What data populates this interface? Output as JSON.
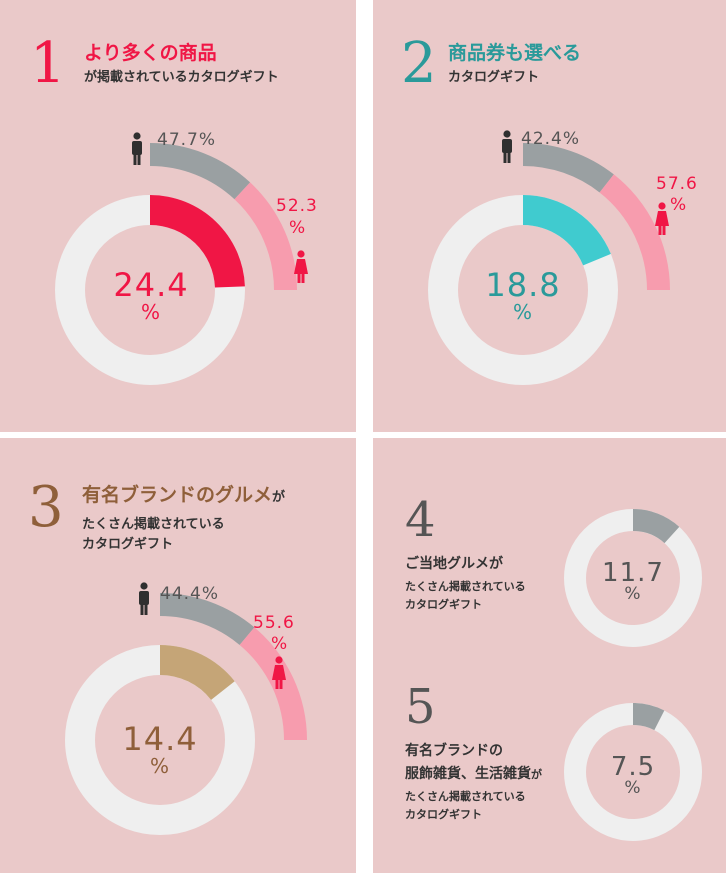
{
  "colors": {
    "card_bg": "#eac9c9",
    "donut_bg": "#efefef",
    "male_gray": "#9aa0a2",
    "female_pink": "#f79cae",
    "red": "#f01645",
    "teal": "#2a9a9a",
    "teal_fill": "#40cbcf",
    "brown": "#8f5f3a",
    "tan_fill": "#c5a577",
    "small_gray": "#9aa0a2"
  },
  "cards": [
    {
      "number": "1",
      "title_lines": [
        "より多くの商品"
      ],
      "subtitle_lines": [
        "が掲載されているカタログギフト"
      ],
      "male_icon": "male-person-icon",
      "female_icon": "female-person-icon"
    },
    {
      "number": "2",
      "title_lines": [
        "商品券も選べる"
      ],
      "subtitle_lines": [
        "カタログギフト"
      ],
      "male_icon": "male-person-icon",
      "female_icon": "female-person-icon"
    },
    {
      "number": "3",
      "title_lines": [
        "有名ブランドのグルメ",
        "が"
      ],
      "subtitle_lines": [
        "たくさん掲載されている",
        "カタログギフト"
      ],
      "male_icon": "male-person-icon",
      "female_icon": "female-person-icon"
    },
    {
      "items": [
        {
          "number": "4",
          "title_lines": [
            "ご当地グルメが"
          ],
          "subtitle_lines": [
            "たくさん掲載されている",
            "カタログギフト"
          ]
        },
        {
          "number": "5",
          "title_lines": [
            "有名ブランドの",
            "服飾雑貨、生活雑貨",
            "が"
          ],
          "subtitle_lines": [
            "たくさん掲載されている",
            "カタログギフト"
          ]
        }
      ]
    }
  ],
  "chart_data": [
    {
      "type": "pie",
      "title": "",
      "value_label": "24.4",
      "unit": "%",
      "value": 24.4,
      "male_label": "47.7%",
      "male": 47.7,
      "female_label": "52.3",
      "female_unit": "%",
      "female": 52.3
    },
    {
      "type": "pie",
      "title": "",
      "value_label": "18.8",
      "unit": "%",
      "value": 18.8,
      "male_label": "42.4%",
      "male": 42.4,
      "female_label": "57.6",
      "female_unit": "%",
      "female": 57.6
    },
    {
      "type": "pie",
      "title": "",
      "value_label": "14.4",
      "unit": "%",
      "value": 14.4,
      "male_label": "44.4%",
      "male": 44.4,
      "female_label": "55.6",
      "female_unit": "%",
      "female": 55.6
    },
    {
      "type": "pie",
      "title": "",
      "value_label": "11.7",
      "unit": "%",
      "value": 11.7
    },
    {
      "type": "pie",
      "title": "",
      "value_label": "7.5",
      "unit": "%",
      "value": 7.5
    }
  ]
}
